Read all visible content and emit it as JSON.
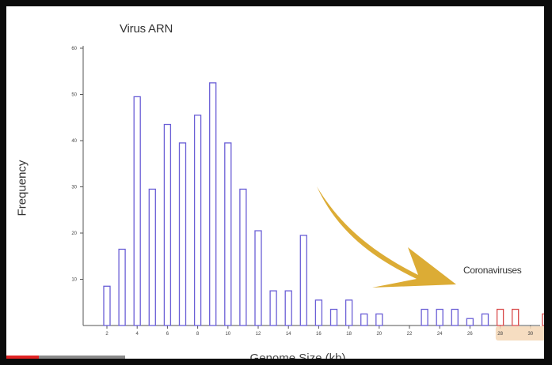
{
  "chart_data": {
    "type": "bar",
    "title": "Virus ARN",
    "xlabel": "Genome Size (kb)",
    "ylabel": "Frequency",
    "ylim": [
      0,
      60
    ],
    "yticks": [
      10,
      20,
      30,
      40,
      50,
      60
    ],
    "xlim": [
      1,
      31
    ],
    "xticks": [
      2,
      4,
      6,
      8,
      10,
      12,
      14,
      16,
      18,
      20,
      22,
      24,
      26,
      28,
      30
    ],
    "grid": false,
    "annotation": "Coronaviruses",
    "highlight_color": "#d94b4b",
    "series": [
      {
        "color": "#6a5fd6",
        "points": [
          {
            "x": 2,
            "y": 8.5
          },
          {
            "x": 3,
            "y": 16.5
          },
          {
            "x": 4,
            "y": 49.5
          },
          {
            "x": 5,
            "y": 29.5
          },
          {
            "x": 6,
            "y": 43.5
          },
          {
            "x": 7,
            "y": 39.5
          },
          {
            "x": 8,
            "y": 45.5
          },
          {
            "x": 9,
            "y": 52.5
          },
          {
            "x": 10,
            "y": 39.5
          },
          {
            "x": 11,
            "y": 29.5
          },
          {
            "x": 12,
            "y": 20.5
          },
          {
            "x": 13,
            "y": 7.5
          },
          {
            "x": 14,
            "y": 7.5
          },
          {
            "x": 15,
            "y": 19.5
          },
          {
            "x": 16,
            "y": 5.5
          },
          {
            "x": 17,
            "y": 3.5
          },
          {
            "x": 18,
            "y": 5.5
          },
          {
            "x": 19,
            "y": 2.5
          },
          {
            "x": 20,
            "y": 2.5
          },
          {
            "x": 23,
            "y": 3.5
          },
          {
            "x": 24,
            "y": 3.5
          },
          {
            "x": 25,
            "y": 3.5
          },
          {
            "x": 26,
            "y": 1.5
          },
          {
            "x": 27,
            "y": 2.5
          }
        ]
      },
      {
        "color": "#d94b4b",
        "points": [
          {
            "x": 28,
            "y": 3.5
          },
          {
            "x": 29,
            "y": 3.5
          },
          {
            "x": 31,
            "y": 2.5
          }
        ]
      }
    ]
  },
  "player": {
    "progress": 0.27
  }
}
